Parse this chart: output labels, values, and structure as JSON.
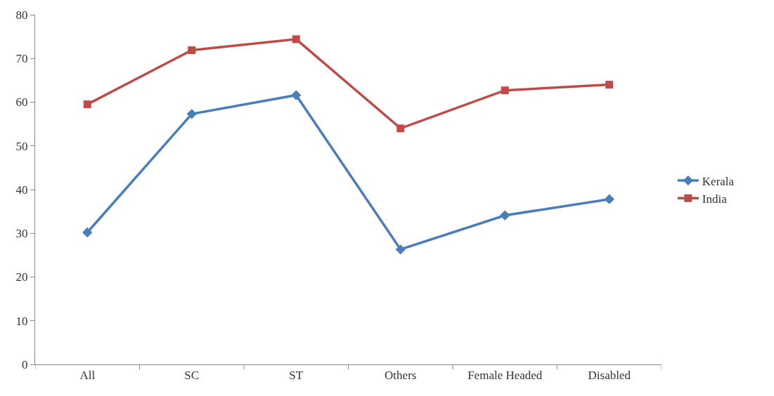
{
  "chart_data": {
    "type": "line",
    "categories": [
      "All",
      "SC",
      "ST",
      "Others",
      "Female Headed",
      "Disabled"
    ],
    "series": [
      {
        "name": "Kerala",
        "color": "#4a7ebb",
        "marker": "diamond",
        "values": [
          30.2,
          57.3,
          61.6,
          26.3,
          34.1,
          37.8
        ]
      },
      {
        "name": "India",
        "color": "#be4b48",
        "marker": "square",
        "values": [
          59.5,
          71.9,
          74.4,
          54.0,
          62.7,
          64.0
        ]
      }
    ],
    "ylim": [
      0,
      80
    ],
    "yticks": [
      0,
      10,
      20,
      30,
      40,
      50,
      60,
      70,
      80
    ],
    "legend": "right",
    "line_style": "solid"
  }
}
